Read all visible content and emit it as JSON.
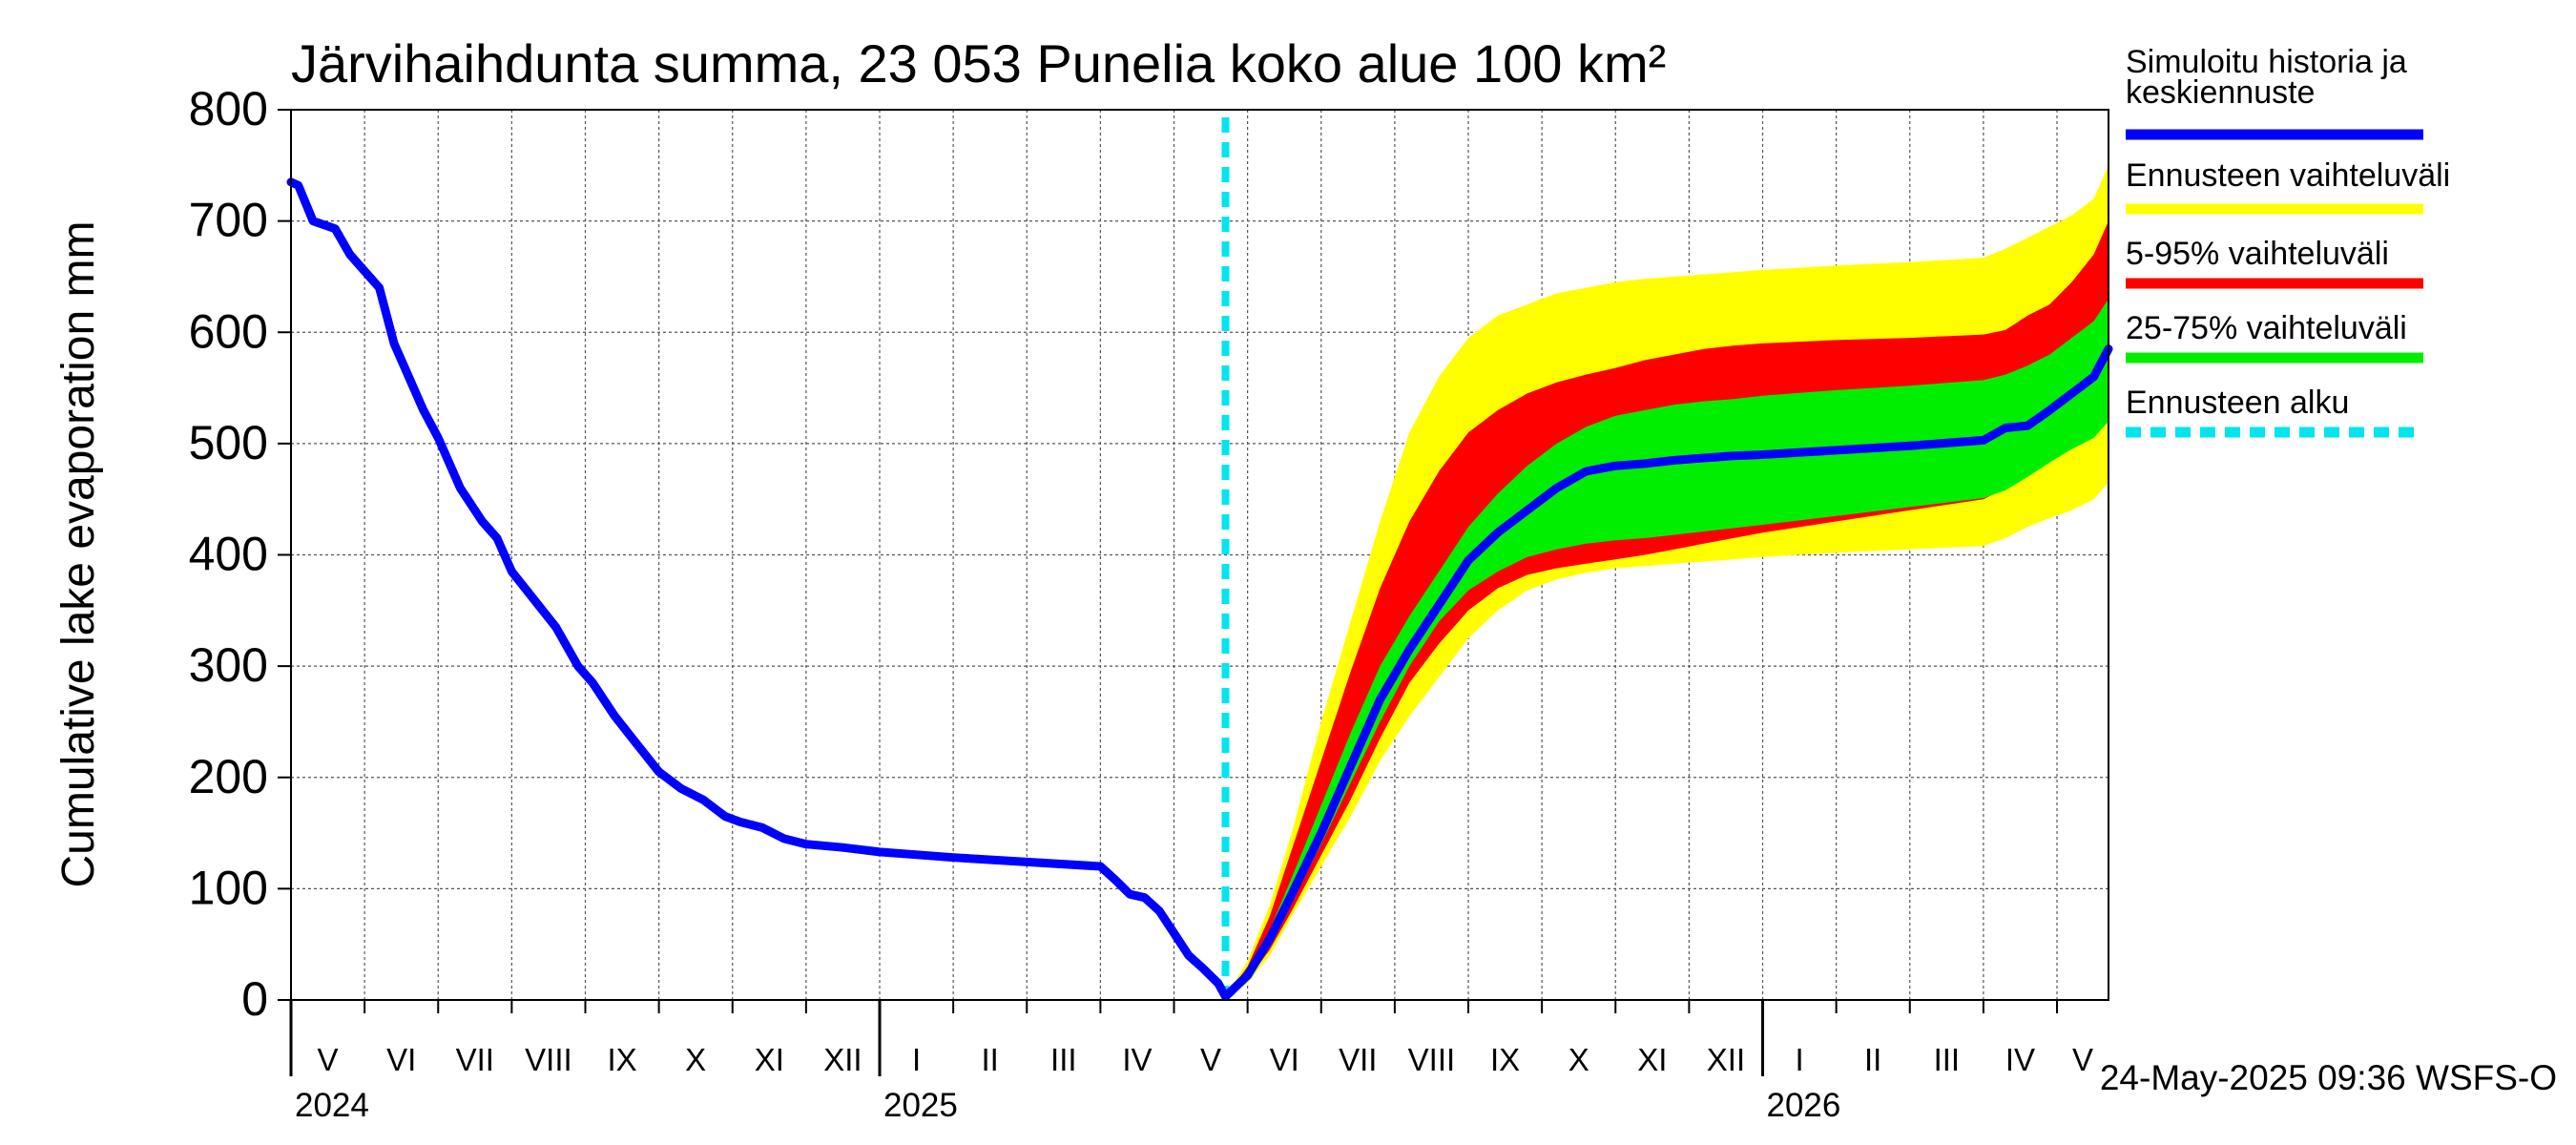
{
  "chart_data": {
    "type": "area",
    "title": "Järvihaihdunta summa, 23 053 Punelia koko alue 100 km²",
    "ylabel": "Cumulative lake evaporation   mm",
    "xlabel": "",
    "ylim": [
      0,
      800
    ],
    "yticks": [
      0,
      100,
      200,
      300,
      400,
      500,
      600,
      700,
      800
    ],
    "x_unit": "months since 2024-05-01",
    "xlim": [
      0,
      24.7
    ],
    "months": [
      "V",
      "VI",
      "VII",
      "VIII",
      "IX",
      "X",
      "XI",
      "XII",
      "I",
      "II",
      "III",
      "IV",
      "V",
      "VI",
      "VII",
      "VIII",
      "IX",
      "X",
      "XI",
      "XII",
      "I",
      "II",
      "III",
      "IV",
      "V"
    ],
    "years": [
      {
        "label": "2024",
        "at": 0
      },
      {
        "label": "2025",
        "at": 8
      },
      {
        "label": "2026",
        "at": 20
      }
    ],
    "forecast_start": 12.7,
    "legend": {
      "placement": "right",
      "entries": [
        {
          "label": "Simuloitu historia ja keskiennuste",
          "color": "#0000ff",
          "style": "solid"
        },
        {
          "label": "Ennusteen vaihteluväli",
          "color": "#ffff00",
          "style": "solid"
        },
        {
          "label": "5-95% vaihteluväli",
          "color": "#ff0000",
          "style": "solid"
        },
        {
          "label": "25-75% vaihteluväli",
          "color": "#00ee00",
          "style": "solid"
        },
        {
          "label": "Ennusteen alku",
          "color": "#00e5ee",
          "style": "dashed"
        }
      ]
    },
    "series": [
      {
        "name": "Simuloitu historia ja keskiennuste",
        "x": [
          0,
          0.1,
          0.3,
          0.6,
          0.8,
          1.0,
          1.2,
          1.4,
          1.6,
          1.8,
          2.0,
          2.3,
          2.6,
          2.8,
          3.0,
          3.3,
          3.6,
          3.9,
          4.1,
          4.4,
          4.7,
          5.0,
          5.3,
          5.6,
          5.9,
          6.1,
          6.4,
          6.7,
          7.0,
          7.5,
          8.0,
          9.0,
          10.0,
          11.0,
          11.2,
          11.4,
          11.6,
          11.8,
          12.0,
          12.2,
          12.4,
          12.6,
          12.7,
          13.0,
          13.3,
          13.6,
          14.0,
          14.4,
          14.8,
          15.2,
          15.6,
          16.0,
          16.4,
          16.8,
          17.2,
          17.6,
          18.0,
          18.4,
          18.8,
          19.2,
          19.6,
          20.0,
          21.0,
          22.0,
          23.0,
          23.3,
          23.6,
          23.9,
          24.2,
          24.5,
          24.7
        ],
        "values": [
          735,
          732,
          700,
          693,
          670,
          655,
          640,
          590,
          560,
          530,
          505,
          460,
          430,
          415,
          385,
          360,
          335,
          300,
          285,
          255,
          230,
          205,
          190,
          180,
          165,
          160,
          155,
          145,
          140,
          137,
          133,
          128,
          124,
          120,
          108,
          95,
          92,
          80,
          60,
          40,
          28,
          15,
          3,
          22,
          55,
          95,
          150,
          210,
          270,
          315,
          355,
          395,
          420,
          440,
          460,
          475,
          480,
          482,
          485,
          487,
          489,
          490,
          494,
          498,
          503,
          514,
          516,
          530,
          545,
          560,
          585
        ]
      }
    ],
    "bands": [
      {
        "name": "Ennusteen vaihteluväli",
        "x": [
          12.7,
          13.0,
          13.3,
          13.6,
          14.0,
          14.4,
          14.8,
          15.2,
          15.6,
          16.0,
          16.4,
          16.8,
          17.2,
          17.6,
          18.0,
          18.4,
          18.8,
          19.2,
          19.6,
          20.0,
          21.0,
          22.0,
          23.0,
          23.3,
          23.6,
          23.9,
          24.2,
          24.5,
          24.7
        ],
        "low": [
          3,
          15,
          40,
          75,
          120,
          165,
          215,
          255,
          290,
          325,
          350,
          368,
          378,
          384,
          388,
          390,
          392,
          394,
          396,
          398,
          402,
          405,
          408,
          415,
          425,
          433,
          440,
          450,
          465
        ],
        "high": [
          3,
          35,
          85,
          150,
          250,
          340,
          430,
          510,
          560,
          595,
          615,
          625,
          635,
          640,
          645,
          648,
          650,
          652,
          654,
          656,
          660,
          663,
          667,
          675,
          685,
          695,
          705,
          720,
          750
        ]
      },
      {
        "name": "5-95% vaihteluväli",
        "x": [
          12.7,
          13.0,
          13.3,
          13.6,
          14.0,
          14.4,
          14.8,
          15.2,
          15.6,
          16.0,
          16.4,
          16.8,
          17.2,
          17.6,
          18.0,
          18.4,
          18.8,
          19.2,
          19.6,
          20.0,
          21.0,
          22.0,
          23.0,
          23.3,
          23.6,
          23.9,
          24.2,
          24.5,
          24.7
        ],
        "low": [
          3,
          18,
          45,
          80,
          130,
          180,
          235,
          285,
          320,
          350,
          370,
          382,
          388,
          392,
          396,
          400,
          405,
          410,
          415,
          420,
          430,
          440,
          450,
          460,
          480,
          495,
          510,
          520,
          535
        ],
        "high": [
          3,
          30,
          75,
          135,
          215,
          295,
          370,
          430,
          475,
          510,
          530,
          545,
          555,
          562,
          568,
          575,
          580,
          585,
          588,
          590,
          593,
          595,
          598,
          602,
          615,
          625,
          645,
          670,
          700
        ]
      },
      {
        "name": "25-75% vaihteluväli",
        "x": [
          12.7,
          13.0,
          13.3,
          13.6,
          14.0,
          14.4,
          14.8,
          15.2,
          15.6,
          16.0,
          16.4,
          16.8,
          17.2,
          17.6,
          18.0,
          18.4,
          18.8,
          19.2,
          19.6,
          20.0,
          21.0,
          22.0,
          23.0,
          23.3,
          23.6,
          23.9,
          24.2,
          24.5,
          24.7
        ],
        "low": [
          3,
          20,
          50,
          88,
          140,
          195,
          250,
          300,
          340,
          368,
          385,
          398,
          405,
          410,
          413,
          415,
          418,
          421,
          424,
          427,
          435,
          443,
          451,
          458,
          470,
          483,
          495,
          505,
          520
        ],
        "high": [
          3,
          26,
          63,
          110,
          175,
          240,
          300,
          345,
          385,
          425,
          455,
          480,
          500,
          515,
          525,
          530,
          535,
          538,
          540,
          543,
          548,
          552,
          557,
          562,
          570,
          580,
          595,
          610,
          630
        ]
      }
    ],
    "timestamp": "24-May-2025 09:36 WSFS-O"
  }
}
